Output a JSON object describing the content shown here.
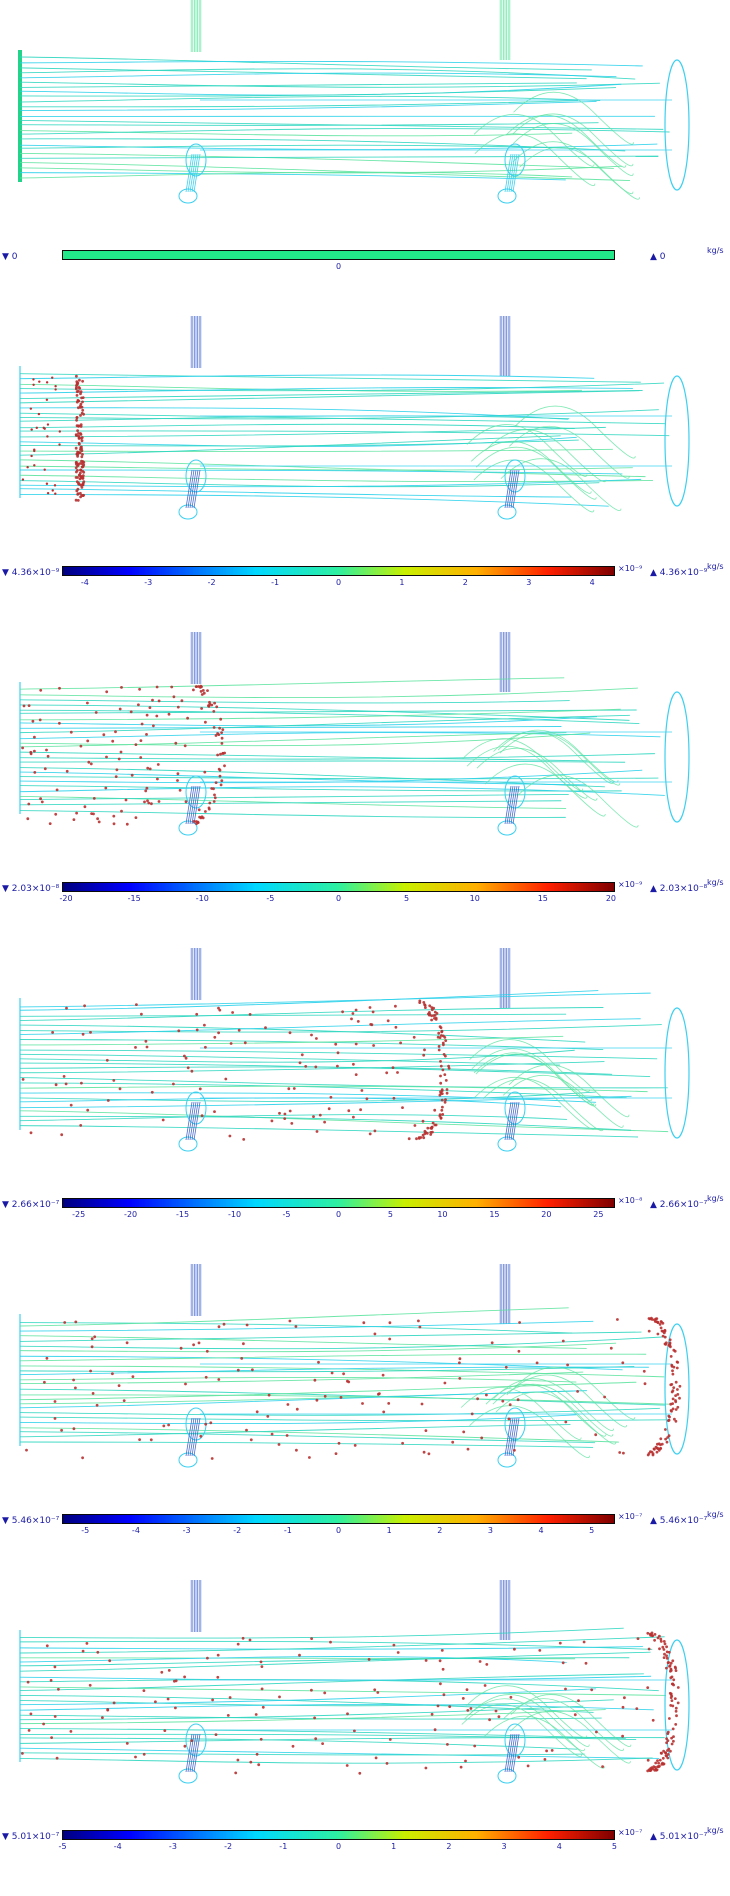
{
  "unit": "kg/s",
  "panels": [
    {
      "min_label": "0",
      "max_label": "0",
      "multiplier": "",
      "ticks": [
        "0"
      ],
      "uniform": true,
      "stage": 0
    },
    {
      "min_label": "4.36×10⁻⁹",
      "max_label": "4.36×10⁻⁹",
      "multiplier": "×10⁻⁹",
      "ticks": [
        "-4",
        "-3",
        "-2",
        "-1",
        "0",
        "1",
        "2",
        "3",
        "4"
      ],
      "range": 4.36,
      "stage": 1
    },
    {
      "min_label": "2.03×10⁻⁸",
      "max_label": "2.03×10⁻⁸",
      "multiplier": "×10⁻⁹",
      "ticks": [
        "-20",
        "-15",
        "-10",
        "-5",
        "0",
        "5",
        "10",
        "15",
        "20"
      ],
      "range": 20.3,
      "stage": 2
    },
    {
      "min_label": "2.66×10⁻⁷",
      "max_label": "2.66×10⁻⁷",
      "multiplier": "×10⁻⁸",
      "ticks": [
        "-25",
        "-20",
        "-15",
        "-10",
        "-5",
        "0",
        "5",
        "10",
        "15",
        "20",
        "25"
      ],
      "range": 26.6,
      "stage": 3
    },
    {
      "min_label": "5.46×10⁻⁷",
      "max_label": "5.46×10⁻⁷",
      "multiplier": "×10⁻⁷",
      "ticks": [
        "-5",
        "-4",
        "-3",
        "-2",
        "-1",
        "0",
        "1",
        "2",
        "3",
        "4",
        "5"
      ],
      "range": 5.46,
      "stage": 4
    },
    {
      "min_label": "5.01×10⁻⁷",
      "max_label": "5.01×10⁻⁷",
      "multiplier": "×10⁻⁷",
      "ticks": [
        "-5",
        "-4",
        "-3",
        "-2",
        "-1",
        "0",
        "1",
        "2",
        "3",
        "4",
        "5"
      ],
      "range": 5.01,
      "stage": 5
    }
  ],
  "colors": {
    "text": "#1a1aa6",
    "streamline_teal": "#2fd6c0",
    "streamline_green": "#5ee3a0",
    "streamline_cyan": "#2ad0ea",
    "particle": "#b83030",
    "ring": "#3cd0f0",
    "nozzle": "#4a6ad0"
  }
}
